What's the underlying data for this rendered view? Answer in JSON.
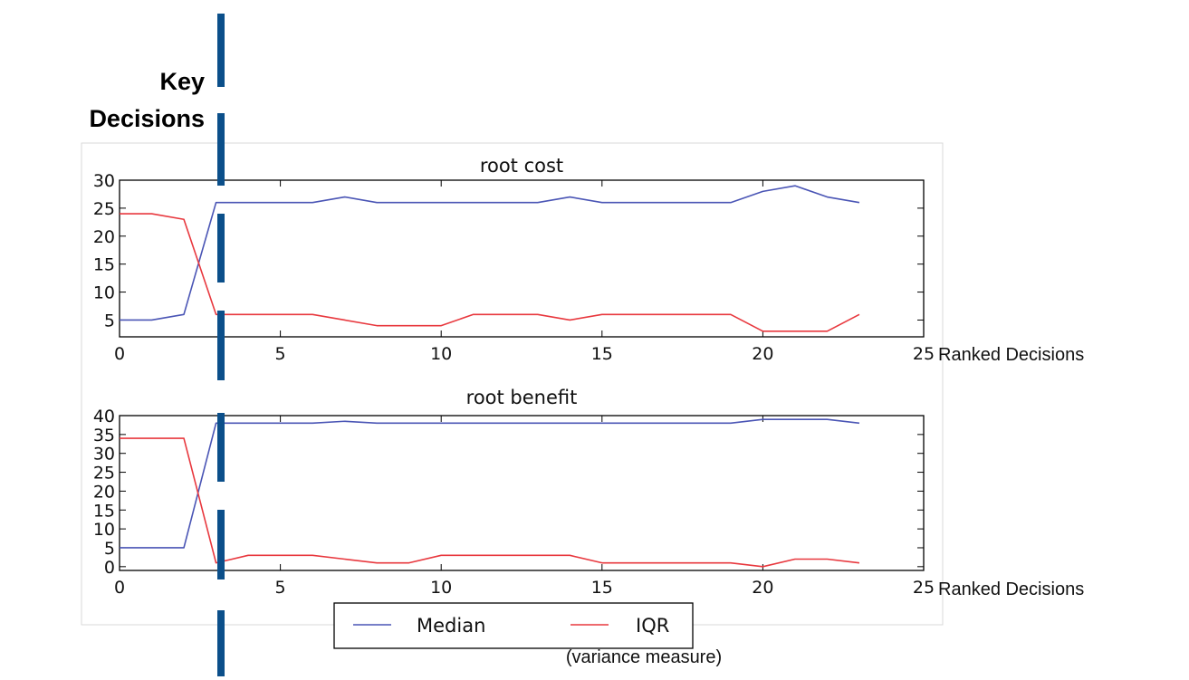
{
  "annotation": {
    "key_decisions_line1": "Key",
    "key_decisions_line2": "Decisions",
    "variance_note": "(variance measure)",
    "marker_color": "#0b4f8a"
  },
  "legend": {
    "items": [
      {
        "label": "Median",
        "color": "#4a55b5"
      },
      {
        "label": "IQR",
        "color": "#e8383e"
      }
    ]
  },
  "chart_data": [
    {
      "type": "line",
      "title": "root cost",
      "xlabel": "Ranked Decisions",
      "ylabel": "",
      "xlim": [
        0,
        25
      ],
      "ylim": [
        2,
        30
      ],
      "xticks": [
        0,
        5,
        10,
        15,
        20,
        25
      ],
      "yticks": [
        5,
        10,
        15,
        20,
        25,
        30
      ],
      "series": [
        {
          "name": "Median",
          "color": "#4a55b5",
          "x": [
            0,
            1,
            2,
            3,
            4,
            5,
            6,
            7,
            8,
            9,
            10,
            11,
            12,
            13,
            14,
            15,
            16,
            17,
            18,
            19,
            20,
            21,
            22,
            23
          ],
          "values": [
            5,
            5,
            6,
            26,
            26,
            26,
            26,
            27,
            26,
            26,
            26,
            26,
            26,
            26,
            27,
            26,
            26,
            26,
            26,
            26,
            28,
            29,
            27,
            26
          ]
        },
        {
          "name": "IQR",
          "color": "#e8383e",
          "x": [
            0,
            1,
            2,
            3,
            4,
            5,
            6,
            7,
            8,
            9,
            10,
            11,
            12,
            13,
            14,
            15,
            16,
            17,
            18,
            19,
            20,
            21,
            22,
            23
          ],
          "values": [
            24,
            24,
            23,
            6,
            6,
            6,
            6,
            5,
            4,
            4,
            4,
            6,
            6,
            6,
            5,
            6,
            6,
            6,
            6,
            6,
            3,
            3,
            3,
            6
          ]
        }
      ]
    },
    {
      "type": "line",
      "title": "root benefit",
      "xlabel": "Ranked Decisions",
      "ylabel": "",
      "xlim": [
        0,
        25
      ],
      "ylim": [
        -1,
        40
      ],
      "xticks": [
        0,
        5,
        10,
        15,
        20,
        25
      ],
      "yticks": [
        0,
        5,
        10,
        15,
        20,
        25,
        30,
        35,
        40
      ],
      "series": [
        {
          "name": "Median",
          "color": "#4a55b5",
          "x": [
            0,
            1,
            2,
            3,
            4,
            5,
            6,
            7,
            8,
            9,
            10,
            11,
            12,
            13,
            14,
            15,
            16,
            17,
            18,
            19,
            20,
            21,
            22,
            23
          ],
          "values": [
            5,
            5,
            5,
            38,
            38,
            38,
            38,
            38.5,
            38,
            38,
            38,
            38,
            38,
            38,
            38,
            38,
            38,
            38,
            38,
            38,
            39,
            39,
            39,
            38
          ]
        },
        {
          "name": "IQR",
          "color": "#e8383e",
          "x": [
            0,
            1,
            2,
            3,
            4,
            5,
            6,
            7,
            8,
            9,
            10,
            11,
            12,
            13,
            14,
            15,
            16,
            17,
            18,
            19,
            20,
            21,
            22,
            23
          ],
          "values": [
            34,
            34,
            34,
            1,
            3,
            3,
            3,
            2,
            1,
            1,
            3,
            3,
            3,
            3,
            3,
            1,
            1,
            1,
            1,
            1,
            0,
            2,
            2,
            1
          ]
        }
      ]
    }
  ]
}
